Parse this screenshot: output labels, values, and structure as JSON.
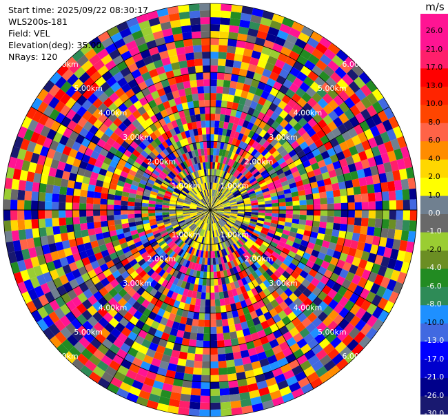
{
  "header": {
    "start_time": "Start time: 2025/09/22 08:30:17",
    "instrument": "WLS200s-181",
    "field": "Field: VEL",
    "elevation": "Elevation(deg): 35.00",
    "nrays": "NRays: 120"
  },
  "chart_data": {
    "type": "polar-ppi",
    "field": "VEL",
    "units": "m/s",
    "nrays": 120,
    "elevation_deg": 35.0,
    "max_range_km": 6.0,
    "range_rings_km": [
      1,
      2,
      3,
      4,
      5,
      6
    ],
    "ring_labels": [
      "1.00km",
      "2.00km",
      "3.00km",
      "4.00km",
      "5.00km",
      "6.00km"
    ],
    "colorbar": {
      "title": "m/s",
      "ticks": [
        "26.0",
        "21.0",
        "17.0",
        "13.0",
        "10.0",
        "8.0",
        "6.0",
        "4.0",
        "2.0",
        "1.0",
        "0.0",
        "-1.0",
        "-2.0",
        "-4.0",
        "-6.0",
        "-8.0",
        "-10.0",
        "-13.0",
        "-17.0",
        "-21.0",
        "-26.0",
        "-30.0"
      ],
      "colors": [
        "#ff1493",
        "#ff1493",
        "#ff1f6b",
        "#ff0000",
        "#ff2400",
        "#ff4500",
        "#ff6347",
        "#ff8c00",
        "#ffd700",
        "#ffff00",
        "#708090",
        "#696969",
        "#9acd32",
        "#6b8e23",
        "#228b22",
        "#2e8b57",
        "#1e90ff",
        "#4169e1",
        "#0000ff",
        "#0000cd",
        "#00008b",
        "#191970"
      ]
    }
  }
}
